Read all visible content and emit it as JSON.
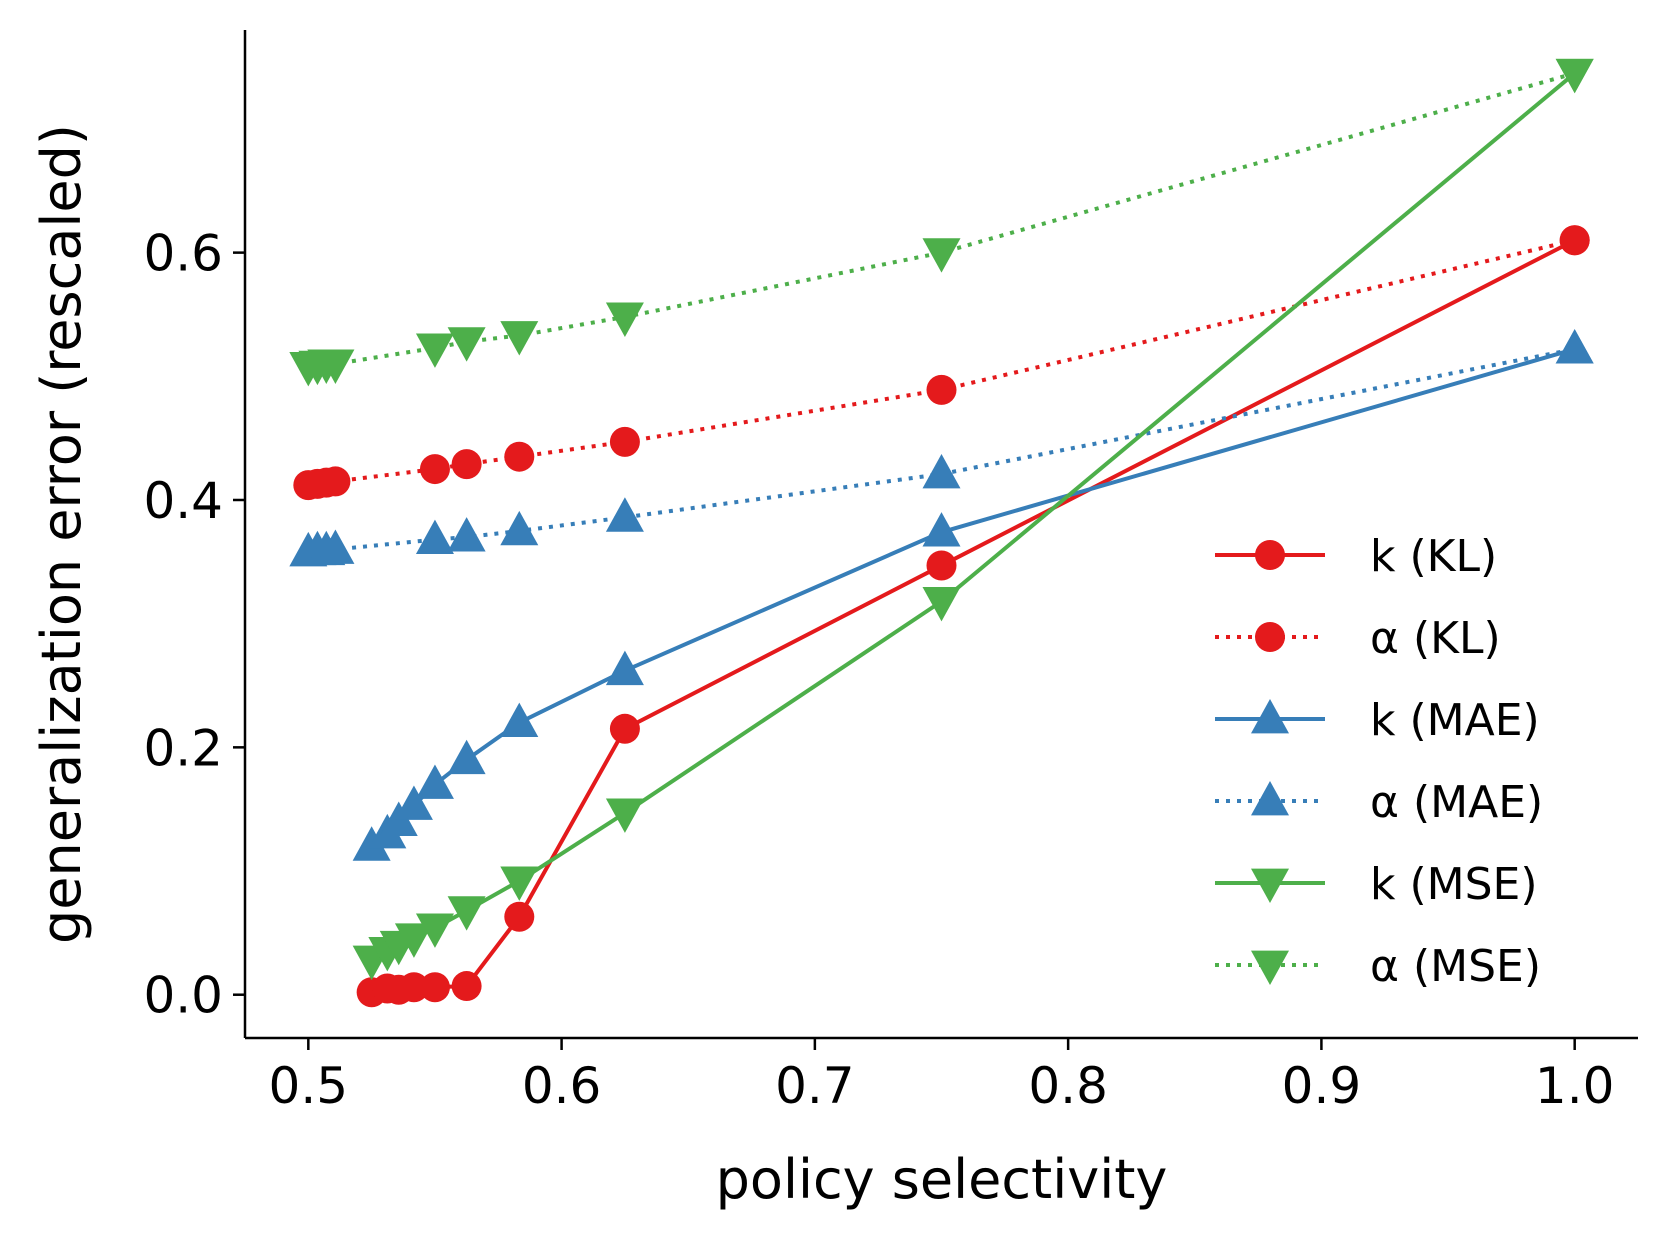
{
  "chart_data": {
    "type": "line",
    "title": "",
    "xlabel": "policy selectivity",
    "ylabel": "generalization error (rescaled)",
    "xlim": [
      0.475,
      1.025
    ],
    "ylim": [
      -0.035,
      0.78
    ],
    "xticks": [
      0.5,
      0.6,
      0.7,
      0.8,
      0.9,
      1.0
    ],
    "xtick_labels": [
      "0.5",
      "0.6",
      "0.7",
      "0.8",
      "0.9",
      "1.0"
    ],
    "yticks": [
      0.0,
      0.2,
      0.4,
      0.6
    ],
    "ytick_labels": [
      "0.0",
      "0.2",
      "0.4",
      "0.6"
    ],
    "grid": false,
    "legend_position": "center-right",
    "series": [
      {
        "name": "k (KL)",
        "color": "#e41a1c",
        "linestyle": "solid",
        "marker": "circle",
        "x": [
          0.525,
          0.5312,
          0.5357,
          0.5417,
          0.55,
          0.5625,
          0.5833,
          0.625,
          0.75,
          1.0
        ],
        "y": [
          0.002,
          0.005,
          0.004,
          0.006,
          0.006,
          0.007,
          0.063,
          0.215,
          0.347,
          0.61
        ]
      },
      {
        "name": "α (KL)",
        "color": "#e41a1c",
        "linestyle": "dotted",
        "marker": "circle",
        "x": [
          0.5,
          0.5036,
          0.5071,
          0.5107,
          0.55,
          0.5625,
          0.5833,
          0.625,
          0.75,
          1.0
        ],
        "y": [
          0.412,
          0.413,
          0.414,
          0.415,
          0.425,
          0.429,
          0.435,
          0.447,
          0.489,
          0.61
        ]
      },
      {
        "name": "k (MAE)",
        "color": "#377eb8",
        "linestyle": "solid",
        "marker": "triangle-up",
        "x": [
          0.525,
          0.5312,
          0.5357,
          0.5417,
          0.55,
          0.5625,
          0.5833,
          0.625,
          0.75,
          1.0
        ],
        "y": [
          0.12,
          0.13,
          0.14,
          0.153,
          0.17,
          0.19,
          0.22,
          0.262,
          0.374,
          0.522
        ]
      },
      {
        "name": "α (MAE)",
        "color": "#377eb8",
        "linestyle": "dotted",
        "marker": "triangle-up",
        "x": [
          0.5,
          0.5036,
          0.5071,
          0.5107,
          0.55,
          0.5625,
          0.5833,
          0.625,
          0.75,
          1.0
        ],
        "y": [
          0.358,
          0.359,
          0.359,
          0.36,
          0.368,
          0.37,
          0.375,
          0.386,
          0.421,
          0.522
        ]
      },
      {
        "name": "k (MSE)",
        "color": "#4daf4a",
        "linestyle": "solid",
        "marker": "triangle-down",
        "x": [
          0.525,
          0.5312,
          0.5357,
          0.5417,
          0.55,
          0.5625,
          0.5833,
          0.625,
          0.75,
          1.0
        ],
        "y": [
          0.028,
          0.035,
          0.04,
          0.046,
          0.054,
          0.068,
          0.092,
          0.147,
          0.318,
          0.745
        ]
      },
      {
        "name": "α (MSE)",
        "color": "#4daf4a",
        "linestyle": "dotted",
        "marker": "triangle-down",
        "x": [
          0.5,
          0.5036,
          0.5071,
          0.5107,
          0.55,
          0.5625,
          0.5833,
          0.625,
          0.75,
          1.0
        ],
        "y": [
          0.508,
          0.509,
          0.51,
          0.51,
          0.523,
          0.528,
          0.533,
          0.548,
          0.6,
          0.745
        ]
      }
    ]
  }
}
